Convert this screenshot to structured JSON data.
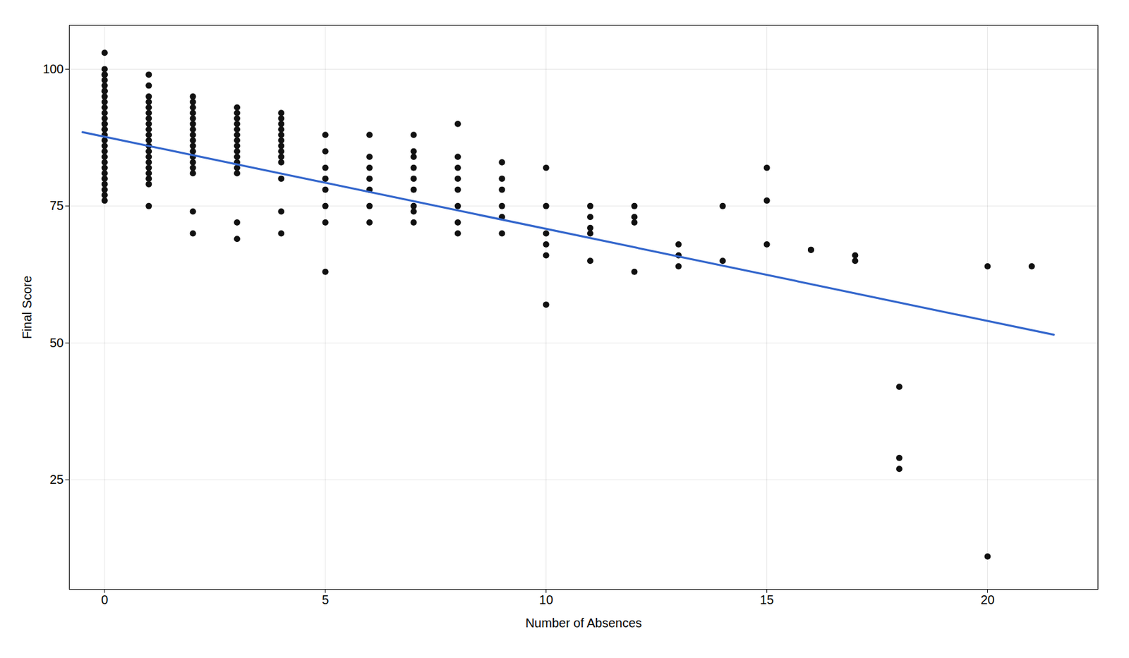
{
  "chart_data": {
    "type": "scatter",
    "xlabel": "Number of Absences",
    "ylabel": "Final Score",
    "x": [
      0,
      0,
      0,
      0,
      0,
      0,
      0,
      0,
      0,
      0,
      0,
      0,
      0,
      0,
      0,
      0,
      0,
      0,
      0,
      0,
      0,
      0,
      0,
      0,
      0,
      0,
      0,
      0,
      0,
      0,
      1,
      1,
      1,
      1,
      1,
      1,
      1,
      1,
      1,
      1,
      1,
      1,
      1,
      1,
      1,
      1,
      1,
      1,
      1,
      1,
      2,
      2,
      2,
      2,
      2,
      2,
      2,
      2,
      2,
      2,
      2,
      2,
      2,
      2,
      2,
      2,
      2,
      3,
      3,
      3,
      3,
      3,
      3,
      3,
      3,
      3,
      3,
      3,
      3,
      3,
      3,
      3,
      4,
      4,
      4,
      4,
      4,
      4,
      4,
      4,
      4,
      4,
      4,
      4,
      4,
      5,
      5,
      5,
      5,
      5,
      5,
      5,
      5,
      6,
      6,
      6,
      6,
      6,
      6,
      6,
      7,
      7,
      7,
      7,
      7,
      7,
      7,
      7,
      7,
      8,
      8,
      8,
      8,
      8,
      8,
      8,
      8,
      9,
      9,
      9,
      9,
      9,
      9,
      10,
      10,
      10,
      10,
      10,
      10,
      11,
      11,
      11,
      11,
      11,
      12,
      12,
      12,
      12,
      13,
      13,
      13,
      14,
      14,
      15,
      15,
      15,
      16,
      16,
      17,
      17,
      18,
      18,
      18,
      20,
      20,
      21
    ],
    "y": [
      103,
      100,
      99,
      99,
      98,
      97,
      96,
      96,
      95,
      94,
      93,
      92,
      91,
      90,
      90,
      89,
      89,
      88,
      87,
      86,
      85,
      84,
      83,
      82,
      81,
      80,
      79,
      78,
      77,
      76,
      99,
      97,
      95,
      94,
      93,
      92,
      91,
      90,
      89,
      88,
      87,
      86,
      85,
      84,
      83,
      82,
      81,
      80,
      79,
      75,
      95,
      94,
      93,
      92,
      91,
      90,
      89,
      88,
      87,
      86,
      85,
      84,
      83,
      82,
      81,
      74,
      70,
      93,
      92,
      91,
      90,
      89,
      88,
      87,
      86,
      85,
      84,
      83,
      82,
      81,
      72,
      69,
      92,
      91,
      90,
      89,
      88,
      87,
      86,
      85,
      84,
      83,
      80,
      74,
      70,
      88,
      85,
      82,
      80,
      78,
      75,
      72,
      63,
      88,
      84,
      82,
      80,
      78,
      75,
      72,
      88,
      85,
      84,
      82,
      80,
      78,
      75,
      74,
      72,
      90,
      84,
      82,
      80,
      78,
      75,
      72,
      70,
      83,
      80,
      78,
      75,
      73,
      70,
      82,
      75,
      70,
      68,
      66,
      57,
      75,
      73,
      71,
      70,
      65,
      75,
      73,
      72,
      63,
      68,
      66,
      64,
      75,
      65,
      82,
      76,
      68,
      67,
      67,
      66,
      65,
      42,
      29,
      27,
      64,
      11,
      64
    ],
    "color": "#111111",
    "regression": {
      "x": [
        -0.5,
        21.5
      ],
      "y": [
        88.5,
        51.5
      ],
      "color": "#3366cc"
    },
    "xlim": [
      -0.8,
      22.5
    ],
    "ylim": [
      5,
      108
    ],
    "xticks": [
      0,
      5,
      10,
      15,
      20
    ],
    "yticks": [
      25,
      50,
      75,
      100
    ],
    "grid": true
  }
}
